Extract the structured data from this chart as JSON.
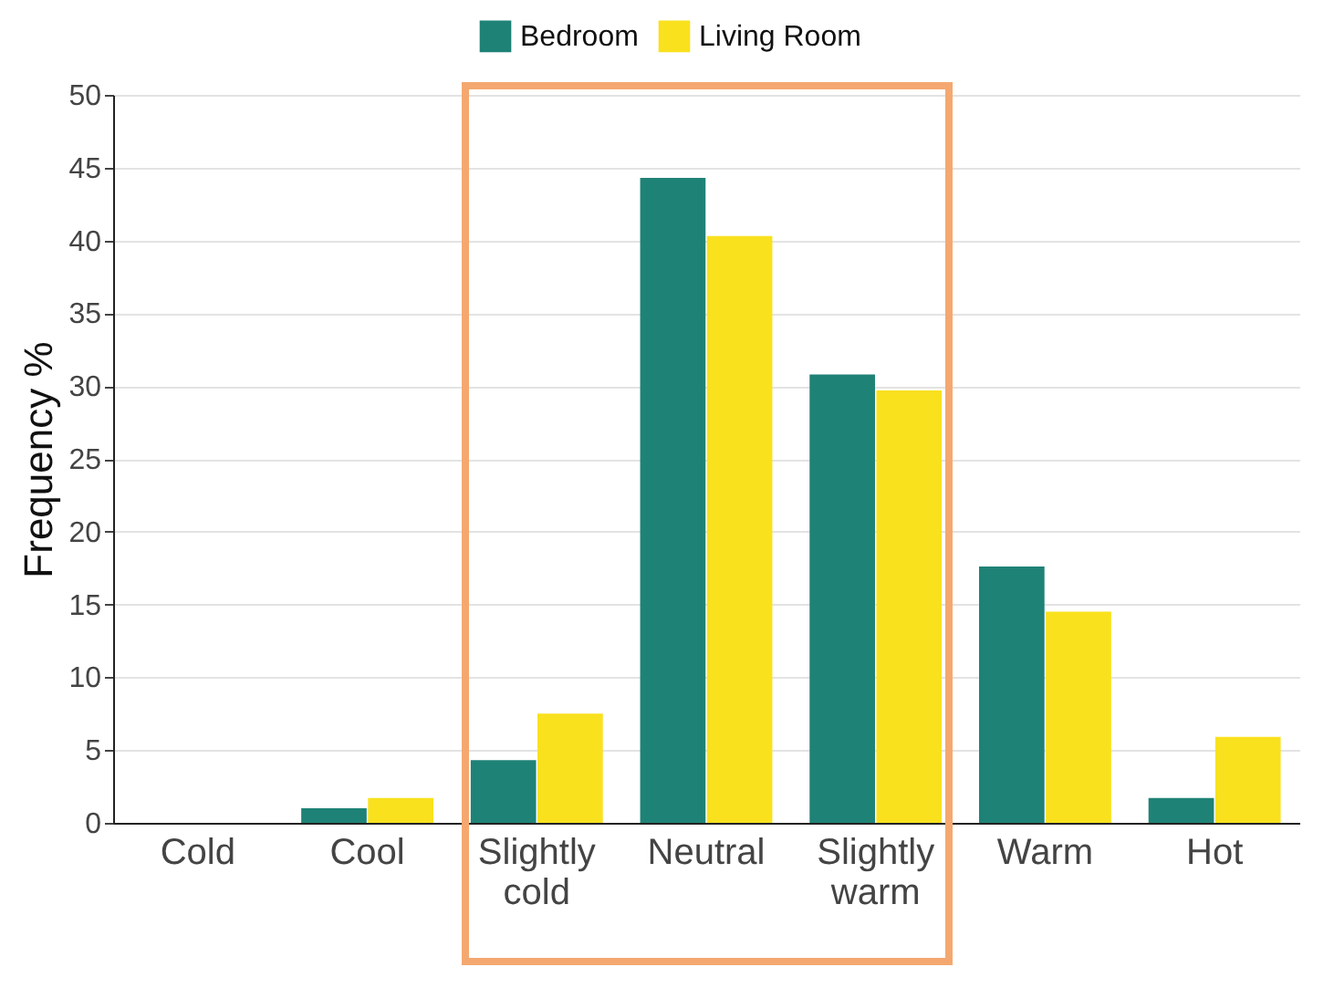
{
  "chart_data": {
    "type": "bar",
    "ylabel": "Frequency %",
    "categories": [
      "Cold",
      "Cool",
      "Slightly\ncold",
      "Neutral",
      "Slightly\nwarm",
      "Warm",
      "Hot"
    ],
    "series": [
      {
        "name": "Bedroom",
        "color": "#1f8276",
        "values": [
          0,
          1.0,
          4.3,
          44.3,
          30.8,
          17.6,
          1.7
        ]
      },
      {
        "name": "Living Room",
        "color": "#f9e11e",
        "values": [
          0,
          1.7,
          7.5,
          40.3,
          29.7,
          14.5,
          5.9
        ]
      }
    ],
    "ylim": [
      0,
      50
    ],
    "yticks": [
      0,
      5,
      10,
      15,
      20,
      25,
      30,
      35,
      40,
      45,
      50
    ],
    "grid": "y",
    "legend": "top"
  }
}
